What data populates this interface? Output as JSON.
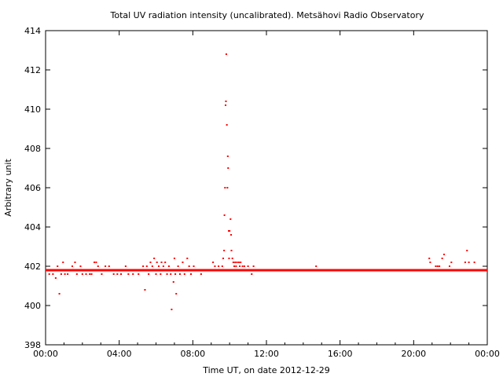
{
  "chart_data": {
    "type": "scatter",
    "title": "Total UV radiation intensity (uncalibrated). Metsähovi Radio Observatory",
    "xlabel": "Time UT, on date 2012-12-29",
    "ylabel": "Arbitrary unit",
    "xlim": [
      0,
      24
    ],
    "ylim": [
      398,
      414
    ],
    "x_ticks": [
      "00:00",
      "04:00",
      "08:00",
      "12:00",
      "16:00",
      "20:00",
      "00:00"
    ],
    "y_ticks": [
      "398",
      "400",
      "402",
      "404",
      "406",
      "408",
      "410",
      "412",
      "414"
    ],
    "grid": false,
    "colors": {
      "series": "#ff0000",
      "axes": "#000000",
      "background": "#ffffff"
    },
    "baseline": {
      "x_from": 0.0,
      "x_to": 24.0,
      "y": 401.8
    },
    "series": [
      {
        "values": [
          [
            0.2,
            401.6
          ],
          [
            0.4,
            401.6
          ],
          [
            0.55,
            401.4
          ],
          [
            0.65,
            402.0
          ],
          [
            0.75,
            400.6
          ],
          [
            0.85,
            401.6
          ],
          [
            0.95,
            402.2
          ],
          [
            1.05,
            401.6
          ],
          [
            1.2,
            401.6
          ],
          [
            1.45,
            402.0
          ],
          [
            1.6,
            402.2
          ],
          [
            1.7,
            401.6
          ],
          [
            1.9,
            402.0
          ],
          [
            2.0,
            401.6
          ],
          [
            2.2,
            401.6
          ],
          [
            2.4,
            401.6
          ],
          [
            2.5,
            401.6
          ],
          [
            2.65,
            402.2
          ],
          [
            2.75,
            402.2
          ],
          [
            2.85,
            402.0
          ],
          [
            3.05,
            401.6
          ],
          [
            3.25,
            402.0
          ],
          [
            3.45,
            402.0
          ],
          [
            3.7,
            401.6
          ],
          [
            3.9,
            401.6
          ],
          [
            4.1,
            401.6
          ],
          [
            4.35,
            402.0
          ],
          [
            4.5,
            401.6
          ],
          [
            4.75,
            401.6
          ],
          [
            5.05,
            401.6
          ],
          [
            5.3,
            402.0
          ],
          [
            5.4,
            400.8
          ],
          [
            5.5,
            402.0
          ],
          [
            5.6,
            401.6
          ],
          [
            5.7,
            402.2
          ],
          [
            5.8,
            402.0
          ],
          [
            5.9,
            402.4
          ],
          [
            6.0,
            401.6
          ],
          [
            6.05,
            402.2
          ],
          [
            6.15,
            402.0
          ],
          [
            6.25,
            401.6
          ],
          [
            6.3,
            402.2
          ],
          [
            6.4,
            402.0
          ],
          [
            6.5,
            402.2
          ],
          [
            6.6,
            401.6
          ],
          [
            6.7,
            402.0
          ],
          [
            6.8,
            401.6
          ],
          [
            6.85,
            399.8
          ],
          [
            6.95,
            401.2
          ],
          [
            7.0,
            402.4
          ],
          [
            7.05,
            401.6
          ],
          [
            7.1,
            400.6
          ],
          [
            7.2,
            402.0
          ],
          [
            7.3,
            401.6
          ],
          [
            7.45,
            402.2
          ],
          [
            7.55,
            401.6
          ],
          [
            7.7,
            402.4
          ],
          [
            7.8,
            402.0
          ],
          [
            7.9,
            401.6
          ],
          [
            8.05,
            402.0
          ],
          [
            8.2,
            401.8
          ],
          [
            8.45,
            401.6
          ],
          [
            9.1,
            402.2
          ],
          [
            9.2,
            402.0
          ],
          [
            9.3,
            401.8
          ],
          [
            9.4,
            402.0
          ],
          [
            9.5,
            401.8
          ],
          [
            9.6,
            402.0
          ],
          [
            9.65,
            402.4
          ],
          [
            9.7,
            402.8
          ],
          [
            9.72,
            404.6
          ],
          [
            9.75,
            406.0
          ],
          [
            9.78,
            410.2
          ],
          [
            9.8,
            410.4
          ],
          [
            9.82,
            412.8
          ],
          [
            9.85,
            409.2
          ],
          [
            9.88,
            406.0
          ],
          [
            9.9,
            407.6
          ],
          [
            9.92,
            407.0
          ],
          [
            9.95,
            403.8
          ],
          [
            9.97,
            402.4
          ],
          [
            10.0,
            403.8
          ],
          [
            10.05,
            404.4
          ],
          [
            10.08,
            403.6
          ],
          [
            10.1,
            402.8
          ],
          [
            10.15,
            402.4
          ],
          [
            10.2,
            402.2
          ],
          [
            10.25,
            402.0
          ],
          [
            10.3,
            402.2
          ],
          [
            10.35,
            402.0
          ],
          [
            10.4,
            402.2
          ],
          [
            10.5,
            402.2
          ],
          [
            10.55,
            402.0
          ],
          [
            10.6,
            402.2
          ],
          [
            10.7,
            402.0
          ],
          [
            10.75,
            401.8
          ],
          [
            10.8,
            402.0
          ],
          [
            10.9,
            401.8
          ],
          [
            11.0,
            402.0
          ],
          [
            11.1,
            401.8
          ],
          [
            11.2,
            401.6
          ],
          [
            11.3,
            402.0
          ],
          [
            14.7,
            402.0
          ],
          [
            20.85,
            402.4
          ],
          [
            20.9,
            402.2
          ],
          [
            21.2,
            402.0
          ],
          [
            21.3,
            402.0
          ],
          [
            21.4,
            402.0
          ],
          [
            21.55,
            402.4
          ],
          [
            21.65,
            402.6
          ],
          [
            21.95,
            402.0
          ],
          [
            22.05,
            402.2
          ],
          [
            22.8,
            402.2
          ],
          [
            22.9,
            402.8
          ],
          [
            23.0,
            402.2
          ],
          [
            23.3,
            402.2
          ]
        ]
      }
    ]
  }
}
